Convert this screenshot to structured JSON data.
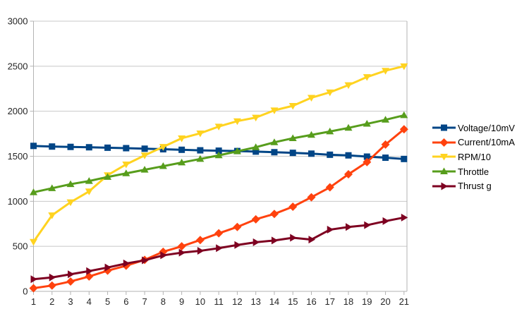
{
  "chart_data": {
    "type": "line",
    "title": "",
    "xlabel": "",
    "ylabel": "",
    "x": [
      1,
      2,
      3,
      4,
      5,
      6,
      7,
      8,
      9,
      10,
      11,
      12,
      13,
      14,
      15,
      16,
      17,
      18,
      19,
      20,
      21
    ],
    "ylim": [
      0,
      3000
    ],
    "yticks": [
      0,
      500,
      1000,
      1500,
      2000,
      2500,
      3000
    ],
    "grid": "horizontal",
    "legend_position": "right",
    "series": [
      {
        "name": "Voltage/10mV",
        "color": "#004586",
        "marker": "square",
        "values": [
          1615,
          1608,
          1604,
          1600,
          1595,
          1590,
          1584,
          1578,
          1572,
          1566,
          1562,
          1558,
          1552,
          1545,
          1538,
          1529,
          1517,
          1510,
          1496,
          1484,
          1470
        ]
      },
      {
        "name": "Current/10mA",
        "color": "#FF420E",
        "marker": "diamond",
        "values": [
          35,
          65,
          110,
          165,
          230,
          285,
          350,
          440,
          500,
          570,
          645,
          715,
          800,
          860,
          940,
          1045,
          1155,
          1300,
          1435,
          1630,
          1800
        ]
      },
      {
        "name": "RPM/10",
        "color": "#FFD320",
        "marker": "triangle-down",
        "values": [
          550,
          845,
          990,
          1110,
          1290,
          1410,
          1510,
          1605,
          1700,
          1755,
          1830,
          1890,
          1930,
          2010,
          2060,
          2150,
          2210,
          2290,
          2380,
          2450,
          2500
        ]
      },
      {
        "name": "Throttle",
        "color": "#579D1C",
        "marker": "triangle-up",
        "values": [
          1100,
          1145,
          1190,
          1225,
          1270,
          1310,
          1350,
          1390,
          1430,
          1470,
          1510,
          1555,
          1600,
          1655,
          1700,
          1737,
          1775,
          1815,
          1860,
          1905,
          1955
        ]
      },
      {
        "name": "Thrust g",
        "color": "#7E0021",
        "marker": "triangle-right",
        "values": [
          135,
          155,
          190,
          225,
          265,
          310,
          345,
          400,
          430,
          450,
          480,
          515,
          545,
          565,
          595,
          575,
          685,
          715,
          735,
          780,
          820
        ]
      }
    ]
  },
  "style_colors": {
    "background": "#ffffff",
    "gridline": "#c8c8c8",
    "axis": "#b3b3b3",
    "tick_label": "#262626",
    "legend_text": "#000000"
  }
}
